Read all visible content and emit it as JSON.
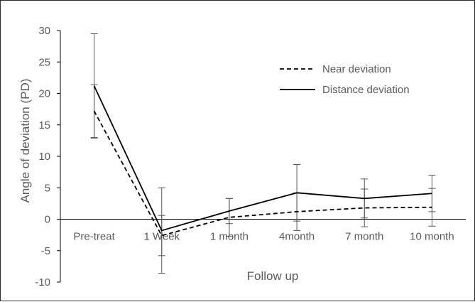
{
  "chart_data": {
    "type": "line",
    "title": "",
    "xlabel": "Follow up",
    "ylabel": "Angle of deviation (PD)",
    "categories": [
      "Pre-treat",
      "1 Week",
      "1 month",
      "4month",
      "7 month",
      "10 month"
    ],
    "ylim": [
      -10,
      30
    ],
    "yticks": [
      "-10",
      "-5",
      "0",
      "5",
      "10",
      "15",
      "20",
      "25",
      "30"
    ],
    "grid": false,
    "legend_position": "top-right",
    "series": [
      {
        "name": "Near deviation",
        "style": "dashed",
        "color": "#000000",
        "values": [
          17.2,
          -2.6,
          0.3,
          1.2,
          1.8,
          1.9
        ],
        "error": [
          4.2,
          3.2,
          3.0,
          3.0,
          3.0,
          3.0
        ]
      },
      {
        "name": "Distance deviation",
        "style": "solid",
        "color": "#000000",
        "values": [
          21.2,
          -1.8,
          1.3,
          4.2,
          3.3,
          4.1
        ],
        "error": [
          8.3,
          6.8,
          2.0,
          4.5,
          3.1,
          2.9
        ]
      }
    ]
  }
}
